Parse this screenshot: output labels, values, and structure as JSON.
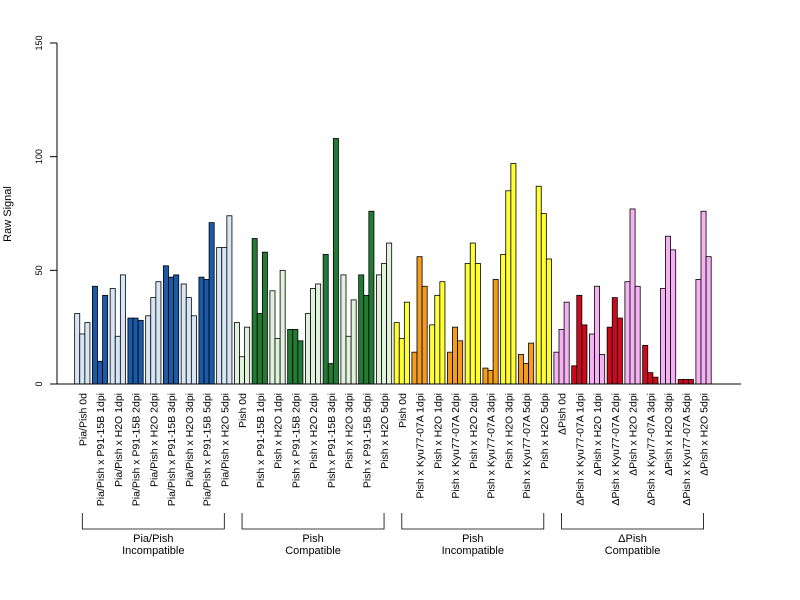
{
  "chart_data": {
    "type": "bar",
    "title": "",
    "xlabel": "",
    "ylabel": "Raw Signal",
    "ylim": [
      0,
      150
    ],
    "yticks": [
      0,
      50,
      100,
      150
    ],
    "grid": false,
    "legend": "none",
    "categories": [
      "Pia/Pish 0d",
      "Pia/Pish x P91-15B 1dpi",
      "Pia/Pish x H2O 1dpi",
      "Pia/Pish x P91-15B 2dpi",
      "Pia/Pish x H2O 2dpi",
      "Pia/Pish x P91-15B 3dpi",
      "Pia/Pish x H2O 3dpi",
      "Pia/Pish x P91-15B 5dpi",
      "Pia/Pish x H2O 5dpi",
      "Pish 0d",
      "Pish x P91-15B 1dpi",
      "Pish x H2O 1dpi",
      "Pish x P91-15B 2dpi",
      "Pish x H2O 2dpi",
      "Pish x P91-15B 3dpi",
      "Pish x H2O 3dpi",
      "Pish x P91-15B 5dpi",
      "Pish x H2O 5dpi",
      "Pish 0d",
      "Pish x Kyu77-07A 1dpi",
      "Pish x H2O 1dpi",
      "Pish x Kyu77-07A 2dpi",
      "Pish x H2O 2dpi",
      "Pish x Kyu77-07A 3dpi",
      "Pish x H2O 3dpi",
      "Pish x Kyu77-07A 5dpi",
      "Pish x H2O 5dpi",
      "ΔPish 0d",
      "ΔPish x Kyu77-07A 1dpi",
      "ΔPish x H2O 1dpi",
      "ΔPish x Kyu77-07A 2dpi",
      "ΔPish x H2O 2dpi",
      "ΔPish x Kyu77-07A 3dpi",
      "ΔPish x H2O 3dpi",
      "ΔPish x Kyu77-07A 5dpi",
      "ΔPish x H2O 5dpi"
    ],
    "values": [
      [
        31,
        22,
        27
      ],
      [
        43,
        10,
        39
      ],
      [
        42,
        21,
        48
      ],
      [
        29,
        29,
        28
      ],
      [
        30,
        38,
        45
      ],
      [
        52,
        47,
        48
      ],
      [
        44,
        38,
        30
      ],
      [
        47,
        46,
        71
      ],
      [
        60,
        60,
        74
      ],
      [
        27,
        12,
        25
      ],
      [
        64,
        31,
        58
      ],
      [
        41,
        20,
        50
      ],
      [
        24,
        24,
        19
      ],
      [
        31,
        42,
        44
      ],
      [
        57,
        9,
        108
      ],
      [
        48,
        21,
        37
      ],
      [
        48,
        39,
        76
      ],
      [
        48,
        53,
        62
      ],
      [
        27,
        20,
        36
      ],
      [
        14,
        56,
        43
      ],
      [
        26,
        39,
        45
      ],
      [
        14,
        25,
        19
      ],
      [
        53,
        62,
        53
      ],
      [
        7,
        6,
        46
      ],
      [
        57,
        85,
        97
      ],
      [
        13,
        9,
        18
      ],
      [
        87,
        75,
        55
      ],
      [
        14,
        24,
        36
      ],
      [
        8,
        39,
        26
      ],
      [
        22,
        43,
        13
      ],
      [
        25,
        38,
        29
      ],
      [
        45,
        77,
        43
      ],
      [
        17,
        5,
        3
      ],
      [
        42,
        65,
        59
      ],
      [
        2,
        2,
        2
      ],
      [
        46,
        76,
        56
      ]
    ],
    "groups": [
      {
        "label_line1": "Pia/Pish",
        "label_line2": "Incompatible",
        "start": 0,
        "end": 8,
        "light_color": "#d6e6f5",
        "dark_color": "#1a5aa8"
      },
      {
        "label_line1": "Pish",
        "label_line2": "Compatible",
        "start": 9,
        "end": 17,
        "light_color": "#e1f2dc",
        "dark_color": "#237a35"
      },
      {
        "label_line1": "Pish",
        "label_line2": "Incompatible",
        "start": 18,
        "end": 26,
        "light_color": "#ffff33",
        "dark_color": "#f39c1e"
      },
      {
        "label_line1": "ΔPish",
        "label_line2": "Compatible",
        "start": 27,
        "end": 35,
        "light_color": "#f4b2f2",
        "dark_color": "#cc0a1e"
      }
    ]
  }
}
